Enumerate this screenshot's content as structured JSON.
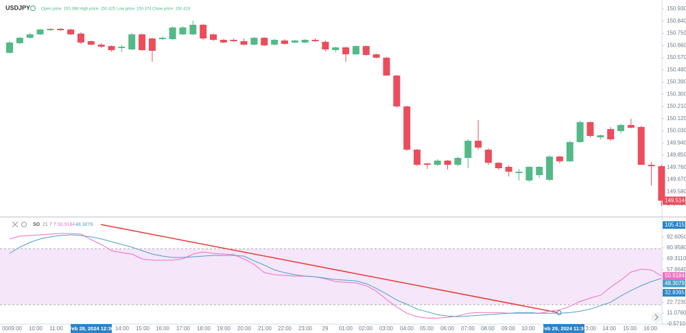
{
  "header": {
    "symbol": "USDJPY",
    "ohlc_labels": [
      "Open price: 150.398",
      "High price: 150.425",
      "Low price: 150.374",
      "Close price: 150.419"
    ]
  },
  "time_labels": [
    "00",
    "09:00",
    "10:00",
    "11:00",
    "Feb 28, 2024 12:30",
    "14:00",
    "15:00",
    "16:00",
    "17:00",
    "18:00",
    "19:00",
    "20:00",
    "21:00",
    "22:00",
    "23:00",
    "29",
    "01:00",
    "02:00",
    "03:00",
    "04:00",
    "05:00",
    "06:00",
    "07:00",
    "08:00",
    "09:00",
    "10:00",
    "Feb 29, 2024 11:30",
    "13:00",
    "14:00",
    "15:00",
    "16:00"
  ],
  "chart_data": [
    {
      "type": "candlestick",
      "up_color": "#53b987",
      "down_color": "#eb4d5c",
      "ylim": [
        149.399,
        150.996
      ],
      "yticks": [
        {
          "value": 150.93,
          "label": "150.930"
        },
        {
          "value": 150.84,
          "label": "150.840"
        },
        {
          "value": 150.75,
          "label": "150.750"
        },
        {
          "value": 150.66,
          "label": "150.660"
        },
        {
          "value": 150.57,
          "label": "150.570"
        },
        {
          "value": 150.48,
          "label": "150.480"
        },
        {
          "value": 150.39,
          "label": "150.390"
        },
        {
          "value": 150.3,
          "label": "150.300"
        },
        {
          "value": 150.21,
          "label": "150.210"
        },
        {
          "value": 150.12,
          "label": "150.120"
        },
        {
          "value": 150.03,
          "label": "150.030"
        },
        {
          "value": 149.94,
          "label": "149.940"
        },
        {
          "value": 149.85,
          "label": "149.850"
        },
        {
          "value": 149.76,
          "label": "149.760"
        },
        {
          "value": 149.67,
          "label": "149.670"
        },
        {
          "value": 149.58,
          "label": "149.580"
        },
        {
          "value": 149.49,
          "label": "149.490"
        }
      ],
      "ohlc": [
        [
          150.606,
          150.692,
          150.601,
          150.682
        ],
        [
          150.677,
          150.722,
          150.672,
          150.717
        ],
        [
          150.717,
          150.753,
          150.712,
          150.742
        ],
        [
          150.742,
          150.783,
          150.737,
          150.778
        ],
        [
          150.773,
          150.788,
          150.768,
          150.783
        ],
        [
          150.783,
          150.788,
          150.768,
          150.773
        ],
        [
          150.778,
          150.783,
          150.737,
          150.742
        ],
        [
          150.748,
          150.758,
          150.672,
          150.682
        ],
        [
          150.692,
          150.697,
          150.661,
          150.666
        ],
        [
          150.666,
          150.677,
          150.641,
          150.651
        ],
        [
          150.656,
          150.661,
          150.616,
          150.626
        ],
        [
          150.641,
          150.666,
          150.611,
          150.651
        ],
        [
          150.631,
          150.753,
          150.626,
          150.742
        ],
        [
          150.742,
          150.748,
          150.621,
          150.626
        ],
        [
          150.712,
          150.717,
          150.54,
          150.621
        ],
        [
          150.707,
          150.727,
          150.702,
          150.717
        ],
        [
          150.707,
          150.803,
          150.702,
          150.793
        ],
        [
          150.742,
          150.803,
          150.737,
          150.793
        ],
        [
          150.742,
          150.844,
          150.737,
          150.813
        ],
        [
          150.813,
          150.818,
          150.702,
          150.712
        ],
        [
          150.742,
          150.748,
          150.692,
          150.702
        ],
        [
          150.702,
          150.707,
          150.677,
          150.682
        ],
        [
          150.702,
          150.712,
          150.687,
          150.692
        ],
        [
          150.692,
          150.712,
          150.661,
          150.666
        ],
        [
          150.666,
          150.722,
          150.661,
          150.717
        ],
        [
          150.717,
          150.722,
          150.656,
          150.661
        ],
        [
          150.666,
          150.707,
          150.661,
          150.702
        ],
        [
          150.697,
          150.707,
          150.666,
          150.672
        ],
        [
          150.682,
          150.702,
          150.677,
          150.697
        ],
        [
          150.682,
          150.707,
          150.677,
          150.702
        ],
        [
          150.702,
          150.712,
          150.687,
          150.692
        ],
        [
          150.687,
          150.697,
          150.616,
          150.631
        ],
        [
          150.626,
          150.651,
          150.611,
          150.646
        ],
        [
          150.646,
          150.651,
          150.54,
          150.595
        ],
        [
          150.595,
          150.661,
          150.59,
          150.656
        ],
        [
          150.656,
          150.661,
          150.585,
          150.59
        ],
        [
          150.595,
          150.6,
          150.565,
          150.57
        ],
        [
          150.57,
          150.575,
          150.438,
          150.438
        ],
        [
          150.438,
          150.443,
          150.2,
          150.21
        ],
        [
          150.21,
          150.215,
          149.881,
          149.891
        ],
        [
          149.891,
          149.896,
          149.769,
          149.779
        ],
        [
          149.789,
          149.794,
          149.748,
          149.779
        ],
        [
          149.779,
          149.82,
          149.769,
          149.81
        ],
        [
          149.81,
          149.815,
          149.744,
          149.779
        ],
        [
          149.779,
          149.84,
          149.769,
          149.83
        ],
        [
          149.83,
          149.967,
          149.754,
          149.957
        ],
        [
          149.957,
          150.109,
          149.89,
          149.906
        ],
        [
          149.891,
          149.901,
          149.779,
          149.794
        ],
        [
          149.794,
          149.8,
          149.744,
          149.754
        ],
        [
          149.764,
          149.775,
          149.693,
          149.728
        ],
        [
          149.718,
          149.749,
          149.663,
          149.728
        ],
        [
          149.663,
          149.77,
          149.653,
          149.764
        ],
        [
          149.703,
          149.77,
          149.683,
          149.764
        ],
        [
          149.668,
          149.85,
          149.658,
          149.84
        ],
        [
          149.84,
          149.845,
          149.79,
          149.805
        ],
        [
          149.805,
          149.957,
          149.8,
          149.947
        ],
        [
          149.947,
          150.104,
          149.942,
          150.094
        ],
        [
          150.094,
          150.099,
          149.982,
          149.992
        ],
        [
          149.982,
          150.003,
          149.967,
          149.997
        ],
        [
          150.043,
          150.058,
          149.957,
          149.967
        ],
        [
          150.028,
          150.083,
          150.012,
          150.073
        ],
        [
          150.073,
          150.119,
          150.048,
          150.053
        ],
        [
          150.058,
          150.068,
          149.779,
          149.779
        ],
        [
          149.779,
          149.8,
          149.627,
          149.769
        ],
        [
          149.769,
          149.779,
          149.475,
          149.514
        ]
      ]
    },
    {
      "type": "line",
      "indicator": "SO",
      "params": [
        21,
        7,
        7
      ],
      "ylim": [
        -0.7,
        112.6
      ],
      "yticks": [
        {
          "value": 92.605,
          "label": "92.6050"
        },
        {
          "value": 80.958,
          "label": "80.9580"
        },
        {
          "value": 69.311,
          "label": "69.3110"
        },
        {
          "value": 57.664,
          "label": "57.6640"
        },
        {
          "value": 22.723,
          "label": "22.7230"
        },
        {
          "value": 11.076,
          "label": "11.0760"
        },
        {
          "value": -0.571,
          "label": "-0.5710"
        }
      ],
      "markers": [
        105.4151,
        32.8395
      ],
      "marker_color": "#2a83c7",
      "levels": [
        80,
        20
      ],
      "band_color": "#f5e6fa",
      "series": [
        {
          "color": "#ee6fc0",
          "values": [
            90.54,
            93.49,
            94.22,
            94.96,
            95.7,
            96.43,
            96.43,
            95.7,
            89.8,
            84.64,
            78.01,
            75.8,
            74.33,
            69.17,
            67.69,
            67.69,
            67.69,
            69.17,
            74.33,
            76.54,
            75.06,
            74.33,
            73.59,
            69.17,
            63.27,
            54.43,
            52.22,
            51.48,
            50.75,
            50.75,
            50.01,
            47.8,
            44.85,
            44.11,
            43.38,
            40.43,
            34.53,
            25.69,
            17.58,
            10.94,
            7.26,
            5.78,
            5.78,
            6.52,
            7.99,
            10.94,
            11.68,
            11.68,
            11.68,
            10.94,
            10.94,
            10.94,
            10.94,
            13.16,
            14.63,
            18.31,
            23.47,
            27.16,
            30.11,
            38.95,
            46.32,
            55.16,
            58.11,
            57.38,
            50.9184
          ]
        },
        {
          "color": "#4a9fc4",
          "values": [
            75.06,
            81.7,
            86.86,
            90.54,
            92.75,
            94.22,
            94.96,
            94.22,
            92.75,
            90.54,
            87.59,
            84.64,
            81.7,
            78.01,
            74.33,
            72.11,
            70.64,
            70.64,
            71.38,
            72.11,
            72.85,
            72.85,
            72.85,
            72.11,
            66.96,
            62.53,
            57.38,
            54.43,
            52.22,
            50.75,
            50.01,
            48.53,
            47.06,
            46.32,
            45.58,
            42.64,
            37.48,
            31.58,
            24.95,
            20.53,
            15.37,
            12.42,
            9.47,
            7.99,
            7.26,
            7.99,
            8.73,
            9.47,
            10.21,
            10.94,
            11.68,
            11.68,
            10.94,
            10.94,
            10.94,
            11.68,
            13.16,
            15.37,
            19.05,
            22.74,
            29.37,
            35.26,
            40.43,
            44.85,
            48.3079
          ]
        }
      ]
    }
  ]
}
